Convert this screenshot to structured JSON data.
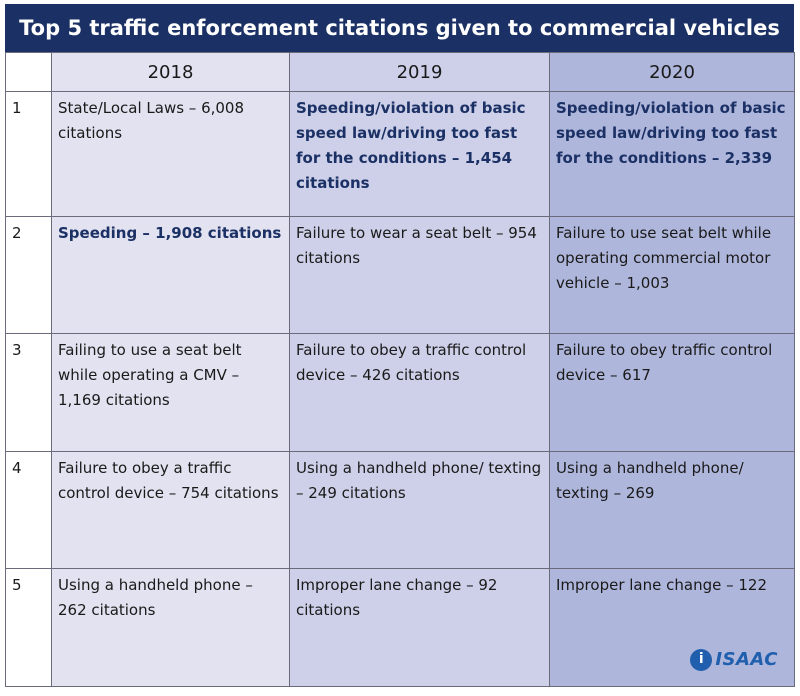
{
  "title": "Top 5 traffic enforcement citations given to commercial vehicles",
  "colors": {
    "title_bg": "#1b3064",
    "col_2018": "#e3e2f0",
    "col_2019": "#cdd0e8",
    "col_2020": "#afb6dc",
    "highlight_text": "#1b3064",
    "logo": "#1f5fae"
  },
  "chart_data": {
    "type": "table",
    "title": "Top 5 traffic enforcement citations given to commercial vehicles",
    "columns": [
      "",
      "2018",
      "2019",
      "2020"
    ],
    "rows": [
      {
        "rank": "1",
        "y2018": "State/Local Laws – 6,008 citations",
        "y2019": "Speeding/violation of basic speed law/driving too fast for the conditions – 1,454 citations",
        "y2020": "Speeding/violation of basic speed law/driving too fast for the conditions – 2,339"
      },
      {
        "rank": "2",
        "y2018": "Speeding – 1,908 citations",
        "y2019": "Failure to wear a seat belt – 954 citations",
        "y2020": "Failure to use seat belt while operating commercial motor vehicle – 1,003"
      },
      {
        "rank": "3",
        "y2018": "Failing to use a seat belt while operating a CMV – 1,169 citations",
        "y2019": "Failure to obey a traffic control device – 426 citations",
        "y2020": "Failure to obey traffic control device – 617"
      },
      {
        "rank": "4",
        "y2018": "Failure to obey a traffic control device – 754 citations",
        "y2019": "Using a handheld phone/ texting – 249 citations",
        "y2020": "Using a handheld phone/ texting – 269"
      },
      {
        "rank": "5",
        "y2018": "Using a handheld phone – 262 citations",
        "y2019": "Improper lane change – 92 citations",
        "y2020": "Improper lane change – 122"
      }
    ],
    "highlighted_cells": [
      "1.y2019",
      "1.y2020",
      "2.y2018"
    ]
  },
  "logo": {
    "mark": "i",
    "text": "ISAAC",
    "icon": "isaac-logo-icon"
  }
}
